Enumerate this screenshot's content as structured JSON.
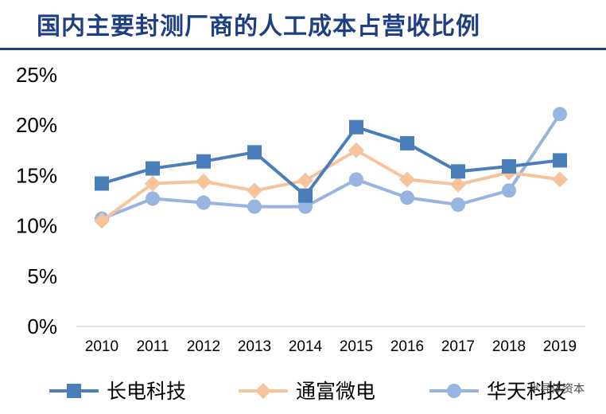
{
  "title": "国内主要封测厂商的人工成本占营收比例",
  "watermark": "半导体资本",
  "chart_data": {
    "type": "line",
    "title": "国内主要封测厂商的人工成本占营收比例",
    "xlabel": "",
    "ylabel": "",
    "x": [
      "2010",
      "2011",
      "2012",
      "2013",
      "2014",
      "2015",
      "2016",
      "2017",
      "2018",
      "2019"
    ],
    "ylim": [
      0,
      25
    ],
    "yticks": [
      0,
      5,
      10,
      15,
      20,
      25
    ],
    "ytick_labels": [
      "0%",
      "5%",
      "10%",
      "15%",
      "20%",
      "25%"
    ],
    "grid": false,
    "legend_position": "bottom",
    "series": [
      {
        "name": "长电科技",
        "color": "#4a7ebb",
        "marker": "square",
        "values": [
          14.2,
          15.7,
          16.4,
          17.3,
          13.0,
          19.8,
          18.2,
          15.4,
          15.9,
          16.5
        ]
      },
      {
        "name": "通富微电",
        "color": "#f7c39b",
        "marker": "diamond",
        "values": [
          10.5,
          14.2,
          14.4,
          13.5,
          14.5,
          17.5,
          14.6,
          14.1,
          15.3,
          14.6
        ]
      },
      {
        "name": "华天科技",
        "color": "#98b4e0",
        "marker": "circle",
        "values": [
          10.7,
          12.7,
          12.3,
          11.9,
          11.9,
          14.6,
          12.8,
          12.1,
          13.5,
          21.1
        ]
      }
    ]
  }
}
